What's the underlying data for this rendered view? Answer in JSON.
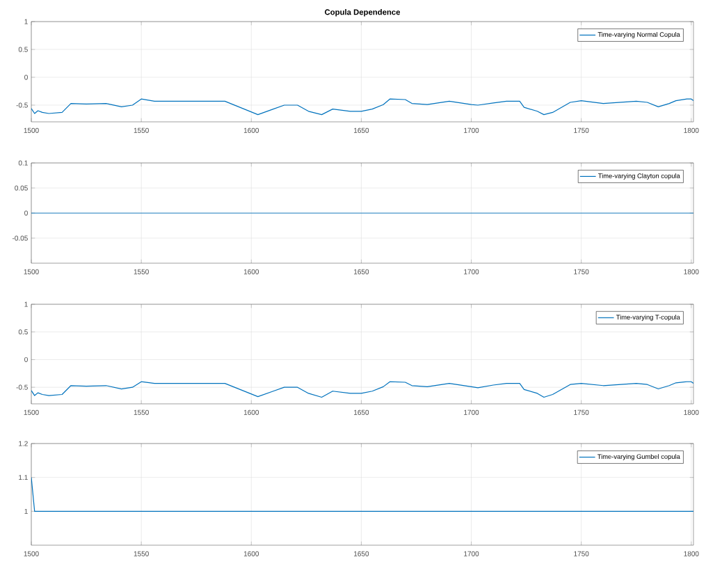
{
  "chart_data": [
    {
      "type": "line",
      "title": "Copula Dependence",
      "xlim": [
        1500,
        1801
      ],
      "xticks": [
        1500,
        1550,
        1600,
        1650,
        1700,
        1750,
        1800
      ],
      "ylim": [
        -0.8,
        1
      ],
      "yticks": [
        -0.5,
        0,
        0.5,
        1
      ],
      "grid": true,
      "legend": "top right",
      "series": [
        {
          "name": "Time-varying Normal Copula",
          "color": "#0072bd",
          "x": [
            1500,
            1501.5,
            1503,
            1505,
            1508,
            1514,
            1518,
            1525,
            1534,
            1541,
            1546,
            1550,
            1556,
            1570,
            1588,
            1598,
            1603,
            1610,
            1615,
            1621,
            1626,
            1632,
            1637,
            1645,
            1650,
            1655,
            1660,
            1663,
            1670,
            1673,
            1680,
            1690,
            1700,
            1703,
            1710,
            1716,
            1722,
            1724,
            1730,
            1733,
            1737,
            1745,
            1750,
            1760,
            1775,
            1780,
            1785,
            1790,
            1793,
            1798,
            1800,
            1801
          ],
          "values": [
            -0.56,
            -0.65,
            -0.6,
            -0.63,
            -0.65,
            -0.63,
            -0.47,
            -0.48,
            -0.47,
            -0.53,
            -0.5,
            -0.39,
            -0.43,
            -0.43,
            -0.43,
            -0.59,
            -0.67,
            -0.57,
            -0.5,
            -0.5,
            -0.61,
            -0.67,
            -0.57,
            -0.61,
            -0.61,
            -0.57,
            -0.49,
            -0.39,
            -0.4,
            -0.47,
            -0.49,
            -0.43,
            -0.49,
            -0.5,
            -0.46,
            -0.43,
            -0.43,
            -0.54,
            -0.61,
            -0.67,
            -0.63,
            -0.45,
            -0.42,
            -0.47,
            -0.43,
            -0.45,
            -0.53,
            -0.47,
            -0.42,
            -0.39,
            -0.39,
            -0.42
          ]
        }
      ]
    },
    {
      "type": "line",
      "xlim": [
        1500,
        1801
      ],
      "xticks": [
        1500,
        1550,
        1600,
        1650,
        1700,
        1750,
        1800
      ],
      "ylim": [
        -0.1,
        0.1
      ],
      "yticks": [
        -0.05,
        0,
        0.05,
        0.1
      ],
      "grid": true,
      "legend": "top right",
      "series": [
        {
          "name": "Time-varying Clayton copula",
          "color": "#0072bd",
          "x": [
            1500,
            1801
          ],
          "values": [
            0,
            0
          ]
        }
      ]
    },
    {
      "type": "line",
      "xlim": [
        1500,
        1801
      ],
      "xticks": [
        1500,
        1550,
        1600,
        1650,
        1700,
        1750,
        1800
      ],
      "ylim": [
        -0.8,
        1
      ],
      "yticks": [
        -0.5,
        0,
        0.5,
        1
      ],
      "grid": true,
      "legend": "top right",
      "series": [
        {
          "name": "Time-varying T-copula",
          "color": "#0072bd",
          "x": [
            1500,
            1501.5,
            1503,
            1505,
            1508,
            1514,
            1518,
            1525,
            1534,
            1541,
            1546,
            1550,
            1556,
            1570,
            1588,
            1598,
            1603,
            1610,
            1615,
            1621,
            1626,
            1632,
            1637,
            1645,
            1650,
            1655,
            1660,
            1663,
            1670,
            1673,
            1680,
            1690,
            1700,
            1703,
            1710,
            1716,
            1722,
            1724,
            1730,
            1733,
            1737,
            1745,
            1750,
            1760,
            1775,
            1780,
            1785,
            1790,
            1793,
            1798,
            1800,
            1801
          ],
          "values": [
            -0.56,
            -0.65,
            -0.6,
            -0.63,
            -0.65,
            -0.63,
            -0.47,
            -0.48,
            -0.47,
            -0.53,
            -0.5,
            -0.4,
            -0.43,
            -0.43,
            -0.43,
            -0.59,
            -0.67,
            -0.57,
            -0.5,
            -0.5,
            -0.61,
            -0.68,
            -0.57,
            -0.61,
            -0.61,
            -0.57,
            -0.49,
            -0.4,
            -0.41,
            -0.47,
            -0.49,
            -0.43,
            -0.49,
            -0.51,
            -0.46,
            -0.43,
            -0.43,
            -0.54,
            -0.61,
            -0.68,
            -0.63,
            -0.45,
            -0.43,
            -0.47,
            -0.43,
            -0.45,
            -0.53,
            -0.47,
            -0.42,
            -0.4,
            -0.4,
            -0.43
          ]
        }
      ]
    },
    {
      "type": "line",
      "xlim": [
        1500,
        1801
      ],
      "xticks": [
        1500,
        1550,
        1600,
        1650,
        1700,
        1750,
        1800
      ],
      "ylim": [
        0.9,
        1.2
      ],
      "yticks": [
        1,
        1.1,
        1.2
      ],
      "grid": true,
      "legend": "top right",
      "series": [
        {
          "name": "Time-varying Gumbel copula",
          "color": "#0072bd",
          "x": [
            1500,
            1501.5,
            1801
          ],
          "values": [
            1.1,
            1,
            1
          ]
        }
      ]
    }
  ]
}
